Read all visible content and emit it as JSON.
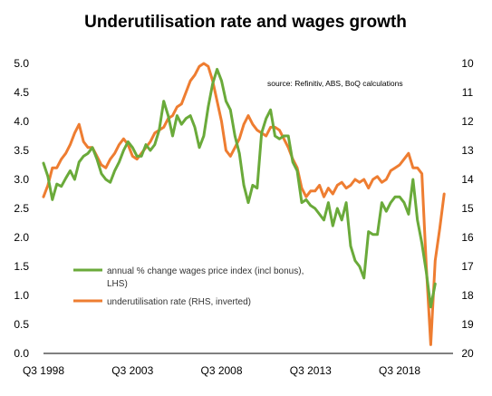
{
  "chart_data": {
    "type": "line",
    "title": "Underutilisation rate and wages growth",
    "source_note": "source:  Refinitiv, ABS, BoQ calculations",
    "x_axis": {
      "ticks": [
        "Q3 1998",
        "Q3 2003",
        "Q3 2008",
        "Q3 2013",
        "Q3 2018"
      ],
      "start": "Q3 1998",
      "end": "Q3 2021"
    },
    "y_left": {
      "min": 0,
      "max": 5,
      "step": 0.5,
      "ticks": [
        "0.0",
        "0.5",
        "1.0",
        "1.5",
        "2.0",
        "2.5",
        "3.0",
        "3.5",
        "4.0",
        "4.5",
        "5.0"
      ]
    },
    "y_right": {
      "min": 10,
      "max": 20,
      "step": 1,
      "inverted": true,
      "ticks": [
        "10",
        "11",
        "12",
        "13",
        "14",
        "15",
        "16",
        "17",
        "18",
        "19",
        "20"
      ]
    },
    "grid": false,
    "legend_position": "lower-left",
    "series": [
      {
        "name": "annual % change wages price index (incl bonus), LHS)",
        "axis": "left",
        "color": "#6aaa3a",
        "x_start": "Q3 1998",
        "values": [
          3.28,
          3.05,
          2.65,
          2.92,
          2.88,
          3.02,
          3.15,
          3.0,
          3.3,
          3.4,
          3.45,
          3.55,
          3.35,
          3.1,
          3.0,
          2.95,
          3.15,
          3.3,
          3.5,
          3.65,
          3.55,
          3.4,
          3.4,
          3.6,
          3.5,
          3.6,
          3.85,
          4.35,
          4.1,
          3.75,
          4.1,
          3.95,
          4.05,
          4.1,
          3.9,
          3.55,
          3.75,
          4.25,
          4.65,
          4.9,
          4.7,
          4.35,
          4.2,
          3.75,
          3.45,
          2.9,
          2.6,
          2.9,
          2.85,
          3.8,
          4.05,
          4.2,
          3.75,
          3.7,
          3.75,
          3.75,
          3.3,
          3.15,
          2.6,
          2.65,
          2.55,
          2.5,
          2.4,
          2.3,
          2.6,
          2.2,
          2.5,
          2.3,
          2.6,
          1.85,
          1.6,
          1.5,
          1.3,
          2.1,
          2.05,
          2.05,
          2.6,
          2.45,
          2.6,
          2.7,
          2.7,
          2.6,
          2.4,
          3.0,
          2.3,
          1.9,
          1.4,
          0.8,
          1.2
        ]
      },
      {
        "name": "underutilisation rate (RHS, inverted)",
        "axis": "right",
        "color": "#ee7d31",
        "x_start": "Q3 1998",
        "values": [
          14.6,
          14.2,
          13.6,
          13.6,
          13.3,
          13.1,
          12.8,
          12.4,
          12.1,
          12.7,
          12.9,
          12.9,
          13.2,
          13.5,
          13.6,
          13.3,
          13.1,
          12.8,
          12.6,
          12.8,
          13.2,
          13.3,
          13.1,
          12.9,
          12.7,
          12.4,
          12.3,
          12.2,
          11.9,
          11.8,
          11.5,
          11.4,
          11.0,
          10.6,
          10.4,
          10.1,
          10.0,
          10.1,
          10.6,
          11.3,
          12.0,
          13.0,
          13.2,
          12.9,
          12.6,
          12.1,
          11.8,
          12.1,
          12.3,
          12.4,
          12.5,
          12.2,
          12.2,
          12.3,
          12.6,
          12.9,
          13.3,
          13.6,
          14.3,
          14.6,
          14.4,
          14.4,
          14.2,
          14.6,
          14.3,
          14.5,
          14.2,
          14.1,
          14.3,
          14.2,
          14.0,
          14.1,
          14.0,
          14.3,
          14.0,
          13.9,
          14.1,
          14.0,
          13.7,
          13.6,
          13.5,
          13.3,
          13.1,
          13.6,
          13.6,
          13.8,
          17.0,
          19.7,
          16.8,
          15.7,
          14.5
        ]
      }
    ]
  }
}
